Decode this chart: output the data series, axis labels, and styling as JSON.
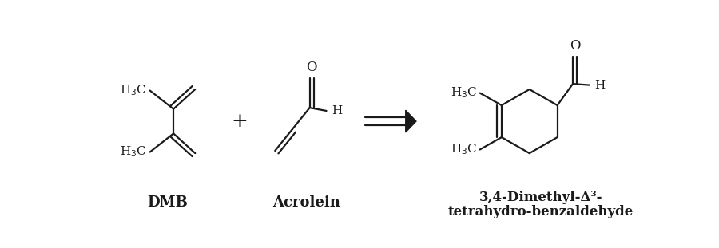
{
  "bg_color": "#ffffff",
  "fig_width": 9.0,
  "fig_height": 3.11,
  "dpi": 100,
  "label_dmb": "DMB",
  "label_acrolein": "Acrolein",
  "label_product_line1": "3,4-Dimethyl-Δ³-",
  "label_product_line2": "tetrahydro-benzaldehyde",
  "plus_sign": "+",
  "line_color": "#1a1a1a",
  "text_color": "#1a1a1a",
  "lw": 1.6
}
